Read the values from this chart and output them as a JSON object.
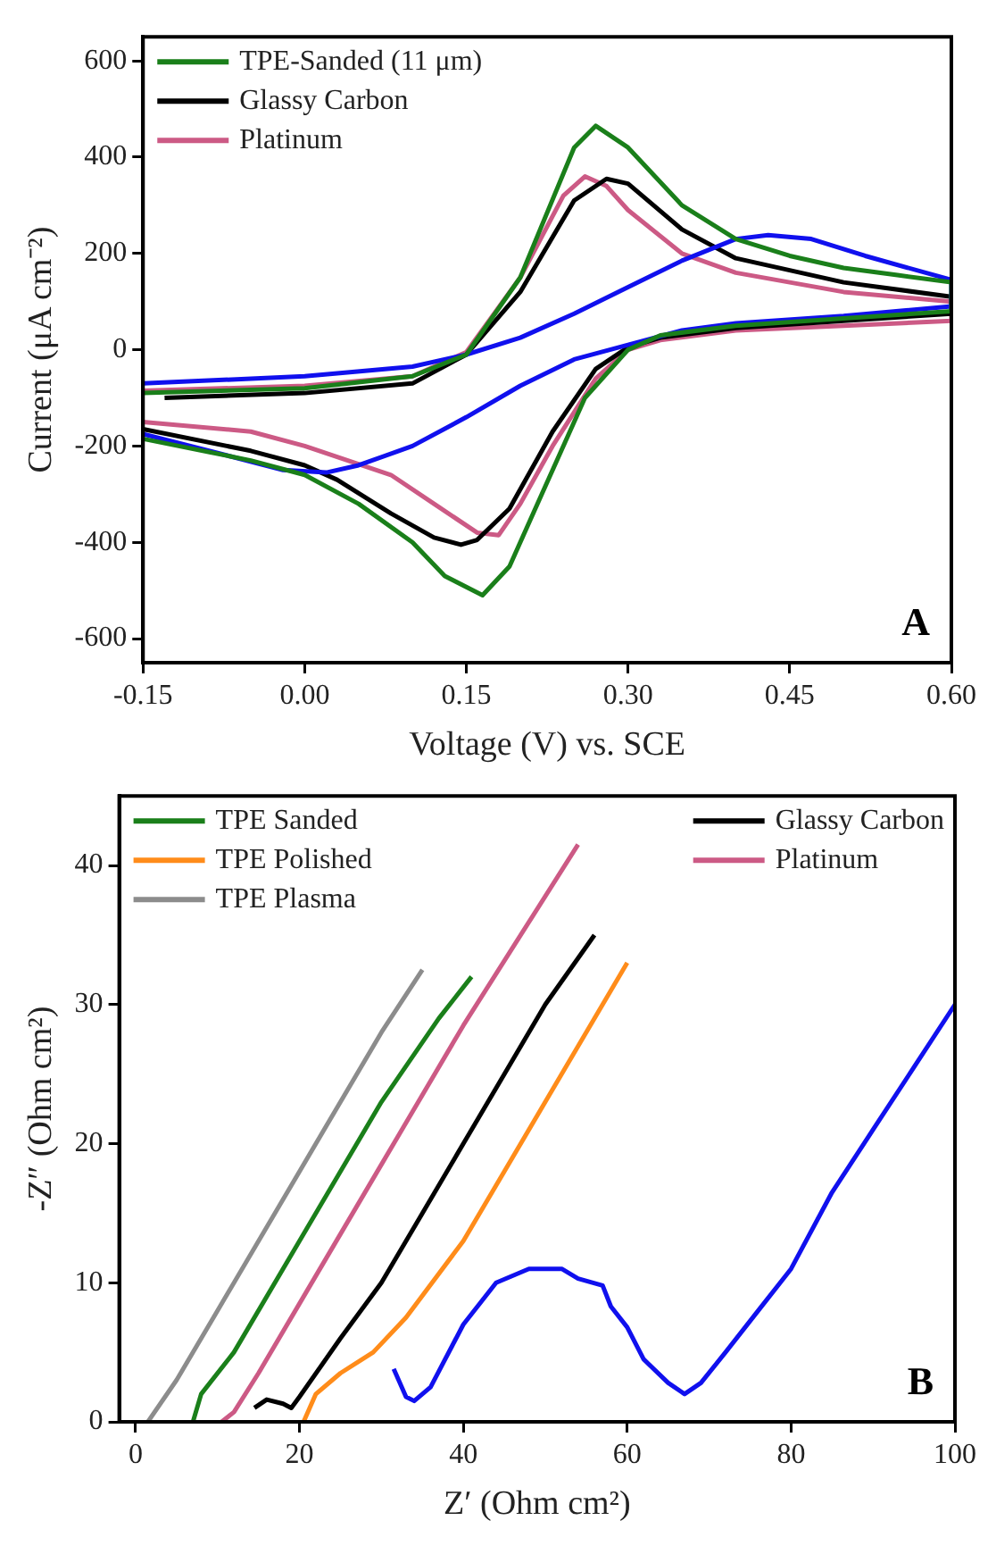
{
  "chart_data": [
    {
      "type": "line",
      "xlabel": "Voltage (V) vs. SCE",
      "ylabel": "Current (μA cm⁻²)",
      "xlim": [
        -0.15,
        0.6
      ],
      "xticks": [
        {
          "value": -0.15,
          "label": "-0.15"
        },
        {
          "value": 0,
          "label": "0.00"
        },
        {
          "value": 0.15,
          "label": "0.15"
        },
        {
          "value": 0.3,
          "label": "0.30"
        },
        {
          "value": 0.45,
          "label": "0.45"
        },
        {
          "value": 0.6,
          "label": "0.60"
        }
      ],
      "ylim": [
        -650,
        650
      ],
      "yticks": [
        -600,
        -400,
        -200,
        0,
        200,
        400,
        600
      ],
      "grid": false,
      "legend": "top left",
      "annotations": [
        "A"
      ],
      "series": [
        {
          "name": "TPE-Sanded (11 μm)",
          "color": "#1a7f1a",
          "x": [
            -0.15,
            0.0,
            0.1,
            0.15,
            0.2,
            0.25,
            0.27,
            0.3,
            0.35,
            0.4,
            0.45,
            0.5,
            0.55,
            0.6,
            0.6,
            0.5,
            0.4,
            0.33,
            0.3,
            0.26,
            0.22,
            0.19,
            0.165,
            0.13,
            0.1,
            0.05,
            0.0,
            -0.05,
            -0.15
          ],
          "values": [
            -90,
            -80,
            -55,
            -10,
            150,
            420,
            465,
            420,
            300,
            230,
            195,
            170,
            155,
            140,
            80,
            65,
            50,
            30,
            0,
            -100,
            -300,
            -450,
            -510,
            -470,
            -400,
            -320,
            -260,
            -230,
            -185
          ]
        },
        {
          "color": "#1010ee",
          "x": [
            -0.15,
            0.0,
            0.1,
            0.15,
            0.2,
            0.25,
            0.3,
            0.35,
            0.4,
            0.43,
            0.47,
            0.52,
            0.6,
            0.6,
            0.5,
            0.4,
            0.35,
            0.3,
            0.25,
            0.2,
            0.15,
            0.1,
            0.05,
            0.02,
            -0.02,
            -0.08,
            -0.15
          ],
          "values": [
            -70,
            -55,
            -35,
            -10,
            25,
            75,
            130,
            185,
            230,
            238,
            230,
            195,
            145,
            90,
            70,
            55,
            40,
            10,
            -20,
            -75,
            -140,
            -200,
            -240,
            -255,
            -250,
            -215,
            -175
          ]
        },
        {
          "name": "Glassy Carbon",
          "color": "#000000",
          "x": [
            -0.13,
            0.0,
            0.1,
            0.15,
            0.2,
            0.25,
            0.28,
            0.3,
            0.35,
            0.4,
            0.5,
            0.6,
            0.6,
            0.5,
            0.4,
            0.33,
            0.3,
            0.27,
            0.23,
            0.19,
            0.16,
            0.145,
            0.12,
            0.08,
            0.03,
            0.0,
            -0.05,
            -0.15
          ],
          "values": [
            -100,
            -90,
            -70,
            -10,
            120,
            310,
            355,
            345,
            250,
            190,
            140,
            110,
            75,
            60,
            45,
            25,
            5,
            -40,
            -170,
            -330,
            -395,
            -405,
            -390,
            -340,
            -270,
            -240,
            -210,
            -165
          ]
        },
        {
          "name": "Platinum",
          "color": "#cc5a85",
          "x": [
            -0.15,
            0.0,
            0.1,
            0.15,
            0.2,
            0.24,
            0.26,
            0.28,
            0.3,
            0.35,
            0.4,
            0.5,
            0.6,
            0.6,
            0.5,
            0.4,
            0.33,
            0.3,
            0.27,
            0.23,
            0.2,
            0.18,
            0.16,
            0.12,
            0.08,
            0.0,
            -0.05,
            -0.15
          ],
          "values": [
            -85,
            -75,
            -55,
            -5,
            150,
            320,
            360,
            340,
            290,
            200,
            160,
            120,
            100,
            60,
            50,
            40,
            20,
            0,
            -60,
            -200,
            -320,
            -385,
            -380,
            -320,
            -260,
            -200,
            -170,
            -150
          ]
        }
      ]
    },
    {
      "type": "line",
      "xlabel": "Z′ (Ohm cm²)",
      "ylabel": "-Z″ (Ohm cm²)",
      "xlim": [
        -2,
        100
      ],
      "xticks": [
        0,
        20,
        40,
        60,
        80,
        100
      ],
      "ylim": [
        0,
        45
      ],
      "yticks": [
        0,
        10,
        20,
        30,
        40
      ],
      "grid": false,
      "legend": "top",
      "annotations": [
        "B"
      ],
      "series": [
        {
          "name": "TPE Sanded",
          "color": "#1a7f1a",
          "x": [
            7,
            8,
            12,
            20,
            30,
            37,
            41
          ],
          "values": [
            0,
            2,
            5,
            13,
            23,
            29,
            32
          ]
        },
        {
          "name": "TPE Polished",
          "color": "#ff8c1a",
          "x": [
            20.5,
            22,
            25,
            29,
            33,
            40,
            50,
            60
          ],
          "values": [
            0,
            2,
            3.5,
            5,
            7.5,
            13,
            23,
            33
          ]
        },
        {
          "name": "TPE Plasma",
          "color": "#8c8c8c",
          "x": [
            1.5,
            5,
            10,
            20,
            30,
            35
          ],
          "values": [
            0,
            3,
            8,
            18,
            28,
            32.5
          ]
        },
        {
          "color": "#1010ee",
          "x": [
            31.5,
            33,
            34,
            36,
            40,
            44,
            48,
            52,
            54,
            57,
            58,
            60,
            62,
            65,
            67,
            69,
            72,
            76,
            80,
            85,
            90,
            95,
            100
          ],
          "values": [
            3.8,
            1.8,
            1.5,
            2.5,
            7,
            10,
            11,
            11,
            10.3,
            9.8,
            8.3,
            6.8,
            4.5,
            2.8,
            2,
            2.8,
            5,
            8,
            11,
            16.5,
            21,
            25.5,
            30
          ]
        },
        {
          "name": "Glassy Carbon",
          "color": "#000000",
          "x": [
            14.5,
            16,
            18,
            19,
            20,
            25,
            30,
            35,
            40,
            45,
            50,
            56
          ],
          "values": [
            1,
            1.6,
            1.3,
            1,
            1.8,
            6,
            10,
            15,
            20,
            25,
            30,
            35
          ]
        },
        {
          "name": "Platinum",
          "color": "#cc5a85",
          "x": [
            10.5,
            12,
            15,
            20,
            30,
            40,
            47,
            54
          ],
          "values": [
            0,
            0.7,
            3.5,
            8.5,
            18.5,
            28.5,
            35,
            41.5
          ]
        }
      ]
    }
  ]
}
